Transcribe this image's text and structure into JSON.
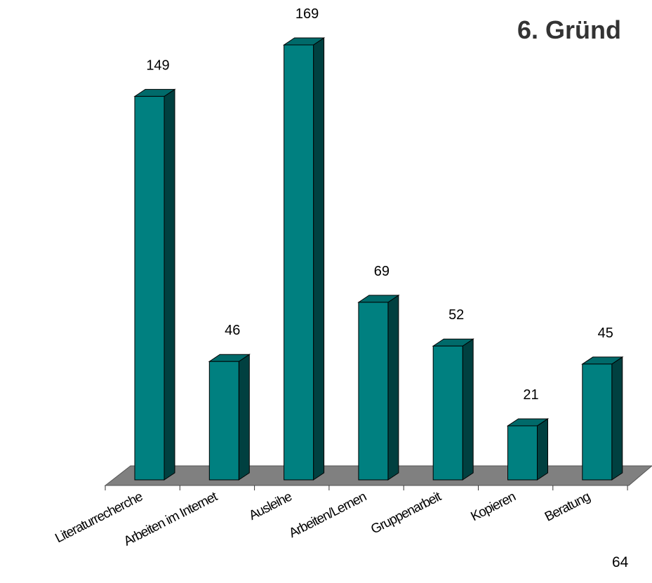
{
  "title": "6. Gründ",
  "page_number": "64",
  "colors": {
    "bar_front": "#008080",
    "bar_side": "#004040",
    "bar_top": "#006a6a",
    "floor": "#808080"
  },
  "chart_data": {
    "type": "bar",
    "title": "6. Gründ",
    "categories": [
      "Literaturrecherche",
      "Arbeiten im Internet",
      "Ausleihe",
      "Arbeiten/Lernen",
      "Gruppenarbeit",
      "Kopieren",
      "Beratung"
    ],
    "values": [
      149,
      46,
      169,
      69,
      52,
      21,
      45
    ],
    "xlabel": "",
    "ylabel": "",
    "ylim": [
      0,
      169
    ],
    "grid": false,
    "legend": "none",
    "style": "3d-column"
  }
}
